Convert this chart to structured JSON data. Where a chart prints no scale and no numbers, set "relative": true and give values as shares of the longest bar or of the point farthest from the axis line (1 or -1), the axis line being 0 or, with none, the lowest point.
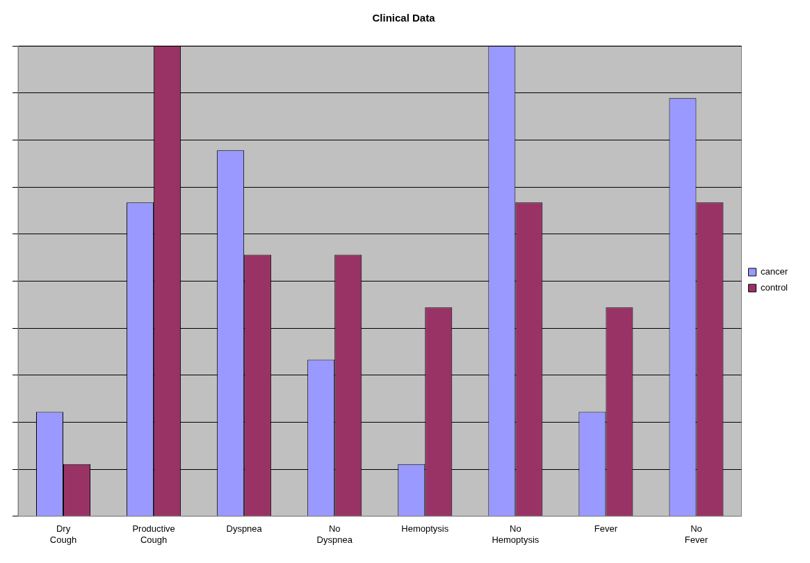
{
  "chart_data": {
    "type": "bar",
    "title": "Clinical Data",
    "relative": true,
    "grid": "y",
    "legend": "right",
    "categories": [
      "Dry Cough",
      "Productive Cough",
      "Dyspnea",
      "No Dyspnea",
      "Hemoptysis",
      "No Hemoptysis",
      "Fever",
      "No Fever"
    ],
    "series": [
      {
        "name": "cancer",
        "color": "#9999ff",
        "values": [
          0.222,
          0.667,
          0.778,
          0.333,
          0.111,
          1,
          0.222,
          0.889
        ]
      },
      {
        "name": "control",
        "color": "#993366",
        "values": [
          0.111,
          1,
          0.556,
          0.556,
          0.444,
          0.667,
          0.444,
          0.667
        ]
      }
    ]
  }
}
